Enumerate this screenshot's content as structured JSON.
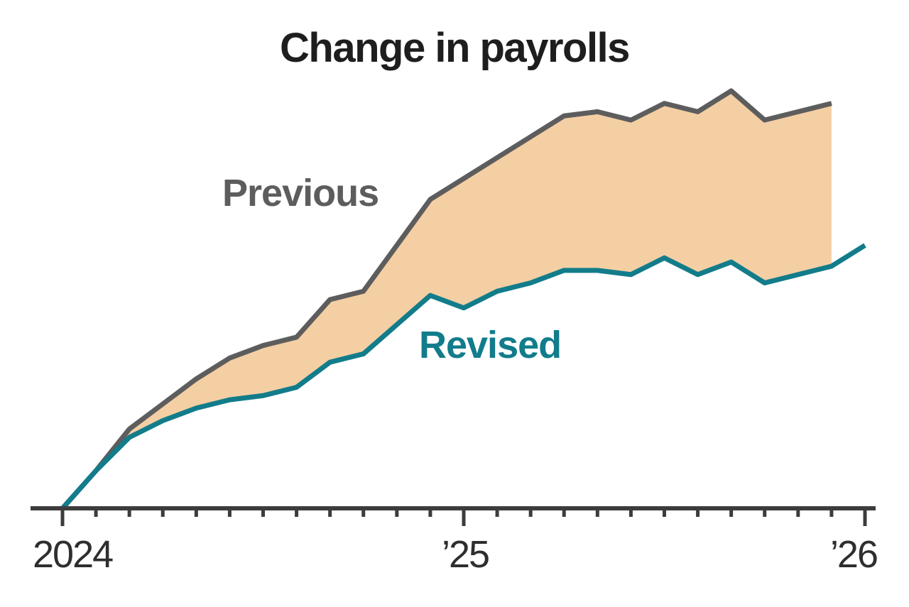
{
  "chart_data": {
    "type": "line",
    "title": "Change in payrolls",
    "xlabel": "",
    "ylabel": "",
    "y_axis_shown": false,
    "units": "relative index (no y-axis scale shown in image), 0 = start, 100 = peak of Previous series",
    "ylim": [
      0,
      100
    ],
    "grid": false,
    "legend_position": "inline-labels-on-chart",
    "categories": [
      "Jan 2024",
      "Feb 2024",
      "Mar 2024",
      "Apr 2024",
      "May 2024",
      "Jun 2024",
      "Jul 2024",
      "Aug 2024",
      "Sep 2024",
      "Oct 2024",
      "Nov 2024",
      "Dec 2024",
      "Jan 2025",
      "Feb 2025",
      "Mar 2025",
      "Apr 2025",
      "May 2025",
      "Jun 2025",
      "Jul 2025",
      "Aug 2025",
      "Sep 2025",
      "Oct 2025",
      "Nov 2025",
      "Dec 2025",
      "Jan 2026"
    ],
    "x_tick_labels": [
      "2024",
      "’25",
      "’26"
    ],
    "series": [
      {
        "name": "Previous",
        "color": "#5d5d5d",
        "values": [
          0,
          9,
          19,
          25,
          31,
          36,
          39,
          41,
          50,
          52,
          63,
          74,
          79,
          84,
          89,
          94,
          95,
          93,
          97,
          95,
          100,
          93,
          95,
          97
        ]
      },
      {
        "name": "Revised",
        "color": "#127c8b",
        "values": [
          0,
          9,
          17,
          21,
          24,
          26,
          27,
          29,
          35,
          37,
          44,
          51,
          48,
          52,
          54,
          57,
          57,
          56,
          60,
          56,
          59,
          54,
          56,
          58,
          63
        ]
      }
    ],
    "band_between_series_fill": "#f4cfa4",
    "axis_color": "#3c3c3c",
    "notes": "Shaded band fills the gap between the Previous line and the lower Revised line; Previous series ends one month earlier (Dec 2025) than Revised (Jan 2026), leaving a vertical right edge on the band."
  }
}
